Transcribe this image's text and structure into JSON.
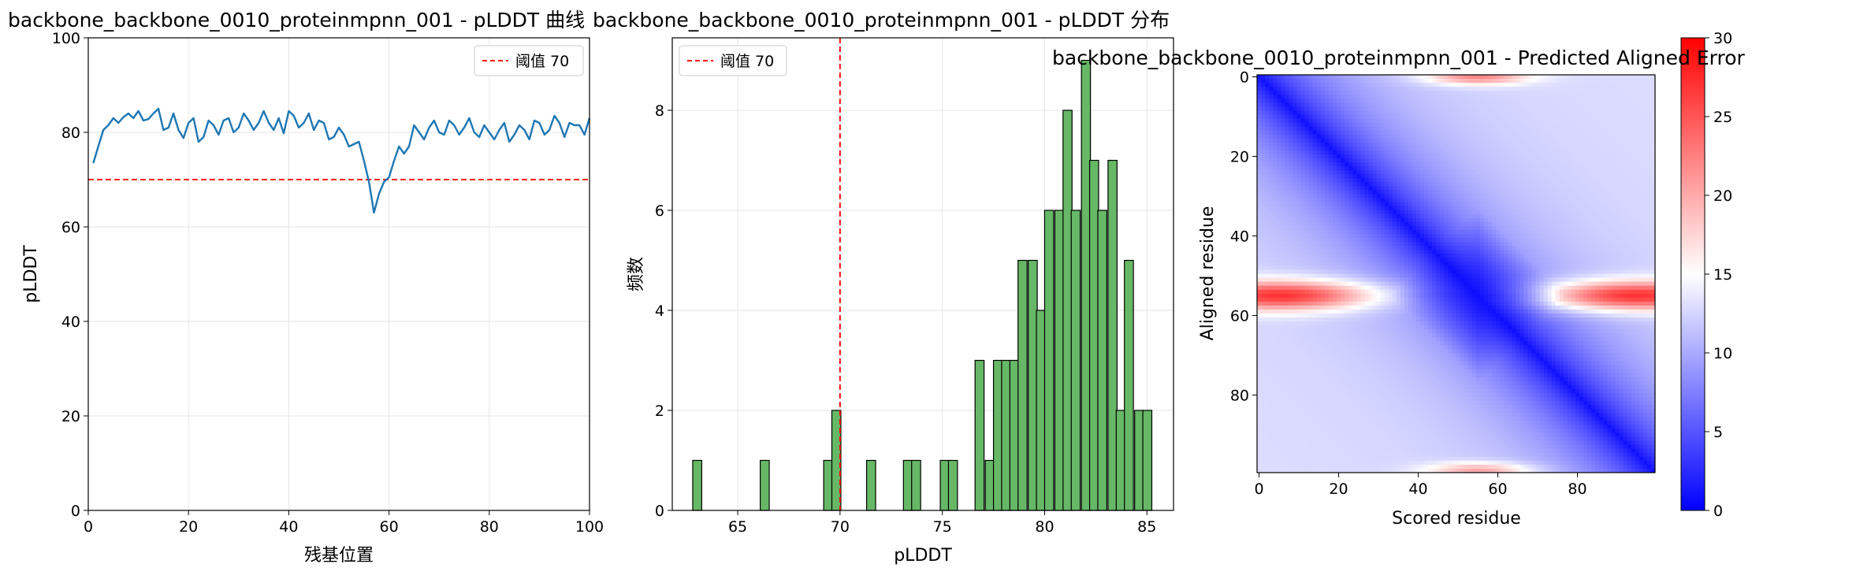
{
  "chart_data": [
    {
      "type": "line",
      "title": "backbone_backbone_0010_proteinmpnn_001 - pLDDT 曲线",
      "xlabel": "残基位置",
      "ylabel": "pLDDT",
      "xlim": [
        0,
        100
      ],
      "ylim": [
        0,
        100
      ],
      "xticks": [
        0,
        20,
        40,
        60,
        80,
        100
      ],
      "yticks": [
        0,
        20,
        40,
        60,
        80,
        100
      ],
      "grid": true,
      "legend": {
        "position": "top-right",
        "entries": [
          "阈值 70"
        ]
      },
      "threshold": {
        "value": 70,
        "label": "阈值 70",
        "color": "#ff0000",
        "style": "dashed"
      },
      "series": [
        {
          "color": "#1f77b4",
          "x": [
            1,
            2,
            3,
            4,
            5,
            6,
            7,
            8,
            9,
            10,
            11,
            12,
            13,
            14,
            15,
            16,
            17,
            18,
            19,
            20,
            21,
            22,
            23,
            24,
            25,
            26,
            27,
            28,
            29,
            30,
            31,
            32,
            33,
            34,
            35,
            36,
            37,
            38,
            39,
            40,
            41,
            42,
            43,
            44,
            45,
            46,
            47,
            48,
            49,
            50,
            51,
            52,
            53,
            54,
            55,
            56,
            57,
            58,
            59,
            60,
            61,
            62,
            63,
            64,
            65,
            66,
            67,
            68,
            69,
            70,
            71,
            72,
            73,
            74,
            75,
            76,
            77,
            78,
            79,
            80,
            81,
            82,
            83,
            84,
            85,
            86,
            87,
            88,
            89,
            90,
            91,
            92,
            93,
            94,
            95,
            96,
            97,
            98,
            99,
            100
          ],
          "values": [
            73.5,
            77,
            80.5,
            81.5,
            83,
            82,
            83.2,
            84,
            83,
            84.5,
            82.5,
            82.8,
            84,
            85,
            80.5,
            81,
            84,
            80.5,
            78.8,
            82,
            83,
            78,
            79,
            82.5,
            81.5,
            79.5,
            82.5,
            83,
            80,
            81,
            84,
            82.5,
            80.5,
            82,
            84.5,
            82,
            80.5,
            83,
            79.8,
            84.5,
            83.5,
            81,
            82,
            84,
            80.5,
            82.5,
            82,
            78.5,
            79,
            81,
            79.5,
            77,
            77.5,
            78,
            74,
            69.5,
            63,
            67,
            69.5,
            70.5,
            74,
            77,
            75.5,
            77,
            81.5,
            80,
            78.5,
            81,
            82.5,
            80,
            79.5,
            82.5,
            81.5,
            79.5,
            81,
            83,
            80,
            79,
            81.5,
            80,
            78.5,
            80.5,
            82,
            78,
            79.5,
            81.5,
            80.5,
            78.5,
            82.5,
            82,
            79.5,
            80.5,
            83.5,
            82,
            79,
            82,
            81.5,
            81.5,
            79.5,
            83
          ]
        }
      ]
    },
    {
      "type": "bar",
      "subtype": "histogram",
      "title": "backbone_backbone_0010_proteinmpnn_001 - pLDDT 分布",
      "xlabel": "pLDDT",
      "ylabel": "频数",
      "xlim": [
        61.8,
        86.3
      ],
      "ylim": [
        0,
        9.45
      ],
      "xticks": [
        65,
        70,
        75,
        80,
        85
      ],
      "yticks": [
        0,
        2,
        4,
        6,
        8
      ],
      "grid": true,
      "legend": {
        "position": "top-left",
        "entries": [
          "阈值 70"
        ]
      },
      "threshold": {
        "value": 70,
        "label": "阈值 70",
        "color": "#ff0000",
        "style": "dashed"
      },
      "bin_width": 0.44,
      "bar_color": "#66b866",
      "bins": [
        {
          "x": 62.8,
          "count": 1
        },
        {
          "x": 66.1,
          "count": 1
        },
        {
          "x": 69.2,
          "count": 1
        },
        {
          "x": 69.6,
          "count": 2
        },
        {
          "x": 71.3,
          "count": 1
        },
        {
          "x": 73.1,
          "count": 1
        },
        {
          "x": 73.5,
          "count": 1
        },
        {
          "x": 74.9,
          "count": 1
        },
        {
          "x": 75.3,
          "count": 1
        },
        {
          "x": 76.6,
          "count": 3
        },
        {
          "x": 77.1,
          "count": 1
        },
        {
          "x": 77.5,
          "count": 3
        },
        {
          "x": 77.9,
          "count": 3
        },
        {
          "x": 78.3,
          "count": 3
        },
        {
          "x": 78.7,
          "count": 5
        },
        {
          "x": 79.2,
          "count": 5
        },
        {
          "x": 79.6,
          "count": 4
        },
        {
          "x": 80.0,
          "count": 6
        },
        {
          "x": 80.5,
          "count": 6
        },
        {
          "x": 80.9,
          "count": 8
        },
        {
          "x": 81.3,
          "count": 6
        },
        {
          "x": 81.8,
          "count": 9
        },
        {
          "x": 82.2,
          "count": 7
        },
        {
          "x": 82.6,
          "count": 6
        },
        {
          "x": 83.1,
          "count": 7
        },
        {
          "x": 83.5,
          "count": 2
        },
        {
          "x": 83.9,
          "count": 5
        },
        {
          "x": 84.4,
          "count": 2
        },
        {
          "x": 84.8,
          "count": 2
        }
      ]
    },
    {
      "type": "heatmap",
      "title": "backbone_backbone_0010_proteinmpnn_001 - Predicted Aligned Error",
      "xlabel": "Scored residue",
      "ylabel": "Aligned residue",
      "n_residues": 100,
      "xticks": [
        0,
        20,
        40,
        60,
        80
      ],
      "yticks": [
        0,
        20,
        40,
        60,
        80
      ],
      "colorscale": [
        "#0000ff",
        "#ffffff",
        "#ff0000"
      ],
      "colorbar": {
        "min": 0,
        "max": 30,
        "ticks": [
          0,
          5,
          10,
          15,
          20,
          25,
          30
        ]
      },
      "hotspots": [
        {
          "row": 55,
          "center_col": 5,
          "value": 27
        },
        {
          "row": 55,
          "center_col": 95,
          "value": 27
        },
        {
          "row": 0,
          "center_col": 55,
          "value": 22
        },
        {
          "row": 99,
          "center_col": 55,
          "value": 20
        }
      ],
      "notes": "Low error (~0-3) near the diagonal, rising to ~10-15 off-diagonal; high-error band at residues ~52-57"
    }
  ]
}
